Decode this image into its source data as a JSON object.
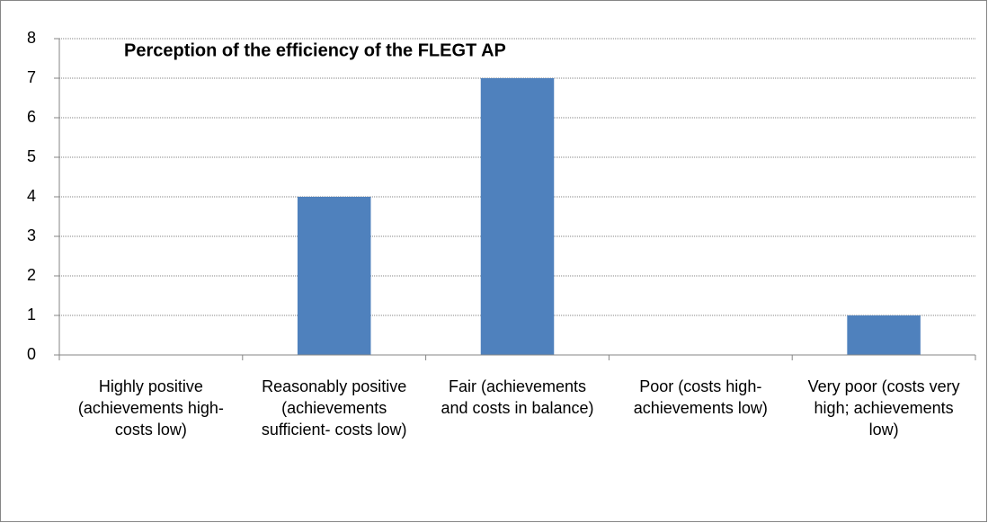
{
  "chart_data": {
    "type": "bar",
    "title": "Perception of the efficiency  of the FLEGT AP",
    "categories": [
      "Highly positive (achievements high- costs low)",
      "Reasonably positive (achievements sufficient- costs low)",
      "Fair (achievements and costs in balance)",
      "Poor (costs high- achievements low)",
      "Very poor (costs very high; achievements low)"
    ],
    "values": [
      0,
      4,
      7,
      0,
      1
    ],
    "color": "#4f81bd",
    "ylim": [
      0,
      8
    ],
    "yticks": [
      0,
      1,
      2,
      3,
      4,
      5,
      6,
      7,
      8
    ],
    "grid": true
  }
}
